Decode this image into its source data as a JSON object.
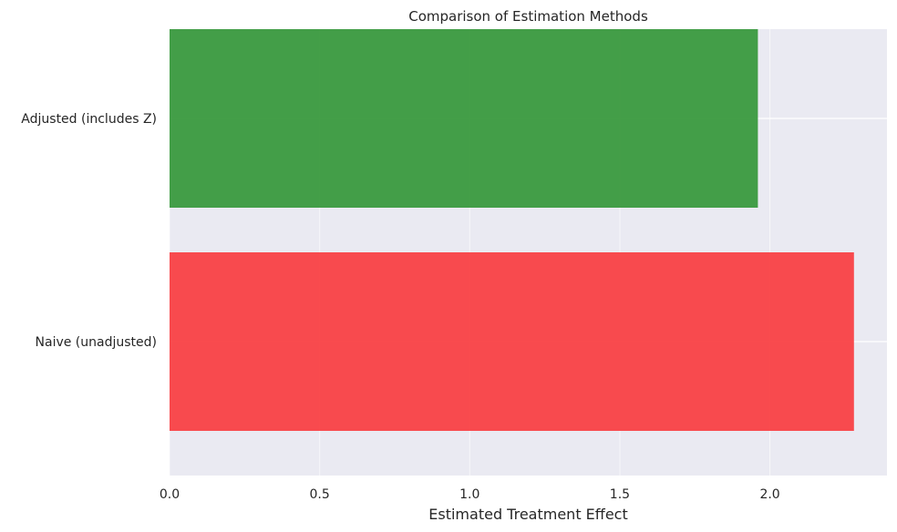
{
  "chart_data": {
    "type": "bar",
    "orientation": "horizontal",
    "title": "Comparison of Estimation Methods",
    "xlabel": "Estimated Treatment Effect",
    "ylabel": "",
    "categories": [
      "Naive (unadjusted)",
      "Adjusted (includes Z)"
    ],
    "values": [
      2.28,
      1.96
    ],
    "colors": [
      "#f94144",
      "#3a9a3e"
    ],
    "xlim": [
      0,
      2.39
    ],
    "xticks": [
      0.0,
      0.5,
      1.0,
      1.5,
      2.0
    ],
    "xtick_labels": [
      "0.0",
      "0.5",
      "1.0",
      "1.5",
      "2.0"
    ],
    "grid": true,
    "background": "#eaeaf2"
  }
}
